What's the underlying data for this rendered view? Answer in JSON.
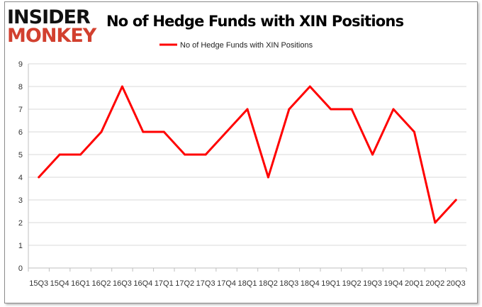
{
  "logo": {
    "line1": "INSIDER",
    "line2": "MONKEY"
  },
  "chart_data": {
    "type": "line",
    "title": "No of Hedge Funds with XIN Positions",
    "categories": [
      "15Q3",
      "15Q4",
      "16Q1",
      "16Q2",
      "16Q3",
      "16Q4",
      "17Q1",
      "17Q2",
      "17Q3",
      "17Q4",
      "18Q1",
      "18Q2",
      "18Q3",
      "18Q4",
      "19Q1",
      "19Q2",
      "19Q3",
      "19Q4",
      "20Q1",
      "20Q2",
      "20Q3"
    ],
    "series": [
      {
        "name": "No of Hedge Funds with XIN Positions",
        "values": [
          4,
          5,
          5,
          6,
          8,
          6,
          6,
          5,
          5,
          6,
          7,
          4,
          7,
          8,
          7,
          7,
          5,
          7,
          6,
          2,
          3
        ],
        "color": "#ff0000"
      }
    ],
    "ylim": [
      0,
      9
    ],
    "yticks": [
      0,
      1,
      2,
      3,
      4,
      5,
      6,
      7,
      8,
      9
    ],
    "grid": true,
    "legend": "top-center"
  }
}
